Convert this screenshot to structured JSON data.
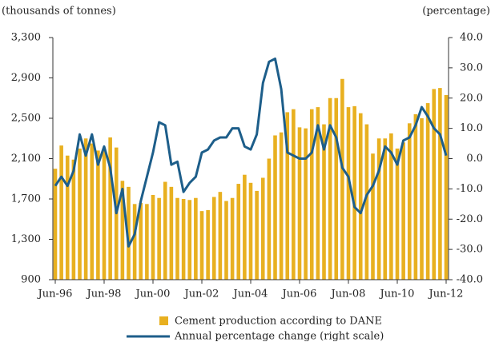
{
  "chart_data": {
    "type": "bar_line",
    "y_label": "(thousands of tonnes)",
    "y2_label": "(percentage)",
    "categories": [
      "Jun-96",
      null,
      null,
      null,
      null,
      null,
      null,
      null,
      "Jun-98",
      null,
      null,
      null,
      null,
      null,
      null,
      null,
      "Jun-00",
      null,
      null,
      null,
      null,
      null,
      null,
      null,
      "Jun-02",
      null,
      null,
      null,
      null,
      null,
      null,
      null,
      "Jun-04",
      null,
      null,
      null,
      null,
      null,
      null,
      null,
      "Jun-06",
      null,
      null,
      null,
      null,
      null,
      null,
      null,
      "Jun-08",
      null,
      null,
      null,
      null,
      null,
      null,
      null,
      "Jun-10",
      null,
      null,
      null,
      null,
      null,
      null,
      null,
      "Jun-12"
    ],
    "series": [
      {
        "name": "Cement production according to DANE",
        "type": "bar",
        "color": "#e8b020",
        "values": [
          2000,
          2230,
          2130,
          2090,
          2200,
          2300,
          2250,
          2180,
          2180,
          2310,
          2210,
          1880,
          1820,
          1650,
          1660,
          1650,
          1740,
          1710,
          1870,
          1820,
          1710,
          1700,
          1690,
          1710,
          1580,
          1590,
          1720,
          1770,
          1680,
          1710,
          1850,
          1940,
          1860,
          1780,
          1910,
          2100,
          2330,
          2360,
          2560,
          2590,
          2410,
          2400,
          2590,
          2610,
          2440,
          2700,
          2700,
          2890,
          2610,
          2620,
          2550,
          2440,
          2150,
          2300,
          2300,
          2350,
          2200,
          2260,
          2450,
          2540,
          2500,
          2650,
          2790,
          2800,
          2730
        ]
      },
      {
        "name": "Annual percentage change (right scale)",
        "type": "line",
        "axis": "y2",
        "color": "#1d5e8a",
        "values": [
          -9,
          -6,
          -9,
          -4,
          8,
          1,
          8,
          -2,
          4,
          -3,
          -18,
          -10,
          -29,
          -25,
          -14,
          -6,
          2,
          12,
          11,
          -2,
          -1,
          -11,
          -8,
          -6,
          2,
          3,
          6,
          7,
          7,
          10,
          10,
          4,
          3,
          8,
          25,
          32,
          33,
          23,
          2,
          1,
          0,
          0,
          2,
          11,
          3,
          11,
          7,
          -3,
          -6,
          -16,
          -18,
          -12,
          -9,
          -4,
          4,
          2,
          -2,
          6,
          7,
          11,
          17,
          14,
          10,
          8,
          1
        ]
      }
    ],
    "ylim": [
      900,
      3300
    ],
    "yticks": [
      900,
      {
        "value": 1300,
        "label": "1,300"
      },
      {
        "value": 1700,
        "label": "1,700"
      },
      {
        "value": 2100,
        "label": "2,100"
      },
      {
        "value": 2500,
        "label": "2,500"
      },
      {
        "value": 2900,
        "label": "2,900"
      },
      {
        "value": 3300,
        "label": "3,300"
      }
    ],
    "y2lim": [
      -40,
      40
    ],
    "y2ticks": [
      {
        "value": -40,
        "label": "-40.0"
      },
      {
        "value": -30,
        "label": "-30.0"
      },
      {
        "value": -20,
        "label": "-20.0"
      },
      {
        "value": -10,
        "label": "-10.0"
      },
      {
        "value": 0,
        "label": "0.0"
      },
      {
        "value": 10,
        "label": "10.0"
      },
      {
        "value": 20,
        "label": "20.0"
      },
      {
        "value": 30,
        "label": "30.0"
      },
      {
        "value": 40,
        "label": "40.0"
      }
    ]
  }
}
